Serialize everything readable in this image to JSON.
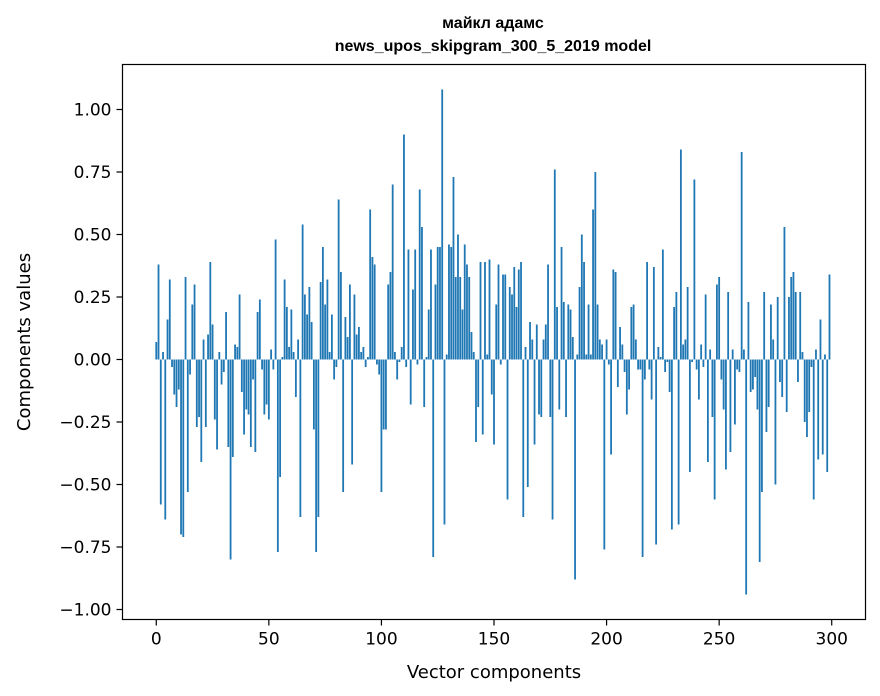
{
  "colors": {
    "bar": "#1f77b4",
    "axis": "#000000",
    "background": "#ffffff"
  },
  "chart_data": {
    "type": "bar",
    "title": "майкл адамс",
    "subtitle": "news_upos_skipgram_300_5_2019 model",
    "xlabel": "Vector components",
    "ylabel": "Components values",
    "xlim": [
      -15,
      315
    ],
    "ylim": [
      -1.04,
      1.18
    ],
    "xticks": [
      0,
      50,
      100,
      150,
      200,
      250,
      300
    ],
    "yticks": [
      -1.0,
      -0.75,
      -0.5,
      -0.25,
      0.0,
      0.25,
      0.5,
      0.75,
      1.0
    ],
    "ytick_labels": [
      "−1.00",
      "−0.75",
      "−0.50",
      "−0.25",
      "0.00",
      "0.25",
      "0.50",
      "0.75",
      "1.00"
    ],
    "grid": false,
    "x": [
      0,
      1,
      2,
      3,
      4,
      5,
      6,
      7,
      8,
      9,
      10,
      11,
      12,
      13,
      14,
      15,
      16,
      17,
      18,
      19,
      20,
      21,
      22,
      23,
      24,
      25,
      26,
      27,
      28,
      29,
      30,
      31,
      32,
      33,
      34,
      35,
      36,
      37,
      38,
      39,
      40,
      41,
      42,
      43,
      44,
      45,
      46,
      47,
      48,
      49,
      50,
      51,
      52,
      53,
      54,
      55,
      56,
      57,
      58,
      59,
      60,
      61,
      62,
      63,
      64,
      65,
      66,
      67,
      68,
      69,
      70,
      71,
      72,
      73,
      74,
      75,
      76,
      77,
      78,
      79,
      80,
      81,
      82,
      83,
      84,
      85,
      86,
      87,
      88,
      89,
      90,
      91,
      92,
      93,
      94,
      95,
      96,
      97,
      98,
      99,
      100,
      101,
      102,
      103,
      104,
      105,
      106,
      107,
      108,
      109,
      110,
      111,
      112,
      113,
      114,
      115,
      116,
      117,
      118,
      119,
      120,
      121,
      122,
      123,
      124,
      125,
      126,
      127,
      128,
      129,
      130,
      131,
      132,
      133,
      134,
      135,
      136,
      137,
      138,
      139,
      140,
      141,
      142,
      143,
      144,
      145,
      146,
      147,
      148,
      149,
      150,
      151,
      152,
      153,
      154,
      155,
      156,
      157,
      158,
      159,
      160,
      161,
      162,
      163,
      164,
      165,
      166,
      167,
      168,
      169,
      170,
      171,
      172,
      173,
      174,
      175,
      176,
      177,
      178,
      179,
      180,
      181,
      182,
      183,
      184,
      185,
      186,
      187,
      188,
      189,
      190,
      191,
      192,
      193,
      194,
      195,
      196,
      197,
      198,
      199,
      200,
      201,
      202,
      203,
      204,
      205,
      206,
      207,
      208,
      209,
      210,
      211,
      212,
      213,
      214,
      215,
      216,
      217,
      218,
      219,
      220,
      221,
      222,
      223,
      224,
      225,
      226,
      227,
      228,
      229,
      230,
      231,
      232,
      233,
      234,
      235,
      236,
      237,
      238,
      239,
      240,
      241,
      242,
      243,
      244,
      245,
      246,
      247,
      248,
      249,
      250,
      251,
      252,
      253,
      254,
      255,
      256,
      257,
      258,
      259,
      260,
      261,
      262,
      263,
      264,
      265,
      266,
      267,
      268,
      269,
      270,
      271,
      272,
      273,
      274,
      275,
      276,
      277,
      278,
      279,
      280,
      281,
      282,
      283,
      284,
      285,
      286,
      287,
      288,
      289,
      290,
      291,
      292,
      293,
      294,
      295,
      296,
      297,
      298,
      299
    ],
    "values": [
      0.07,
      0.38,
      -0.58,
      0.03,
      -0.64,
      0.16,
      0.32,
      -0.03,
      -0.14,
      -0.19,
      -0.12,
      -0.7,
      -0.71,
      0.33,
      -0.53,
      -0.06,
      0.22,
      0.3,
      -0.27,
      -0.23,
      -0.41,
      0.08,
      -0.27,
      0.1,
      0.39,
      0.14,
      -0.24,
      -0.36,
      0.03,
      -0.1,
      -0.05,
      0.19,
      -0.35,
      -0.8,
      -0.39,
      0.06,
      0.05,
      0.26,
      -0.13,
      -0.3,
      -0.2,
      -0.22,
      -0.35,
      -0.08,
      -0.37,
      0.19,
      0.24,
      -0.04,
      -0.22,
      -0.18,
      -0.24,
      0.04,
      -0.04,
      0.48,
      -0.77,
      -0.47,
      0.01,
      0.32,
      0.21,
      0.05,
      0.2,
      0.03,
      -0.15,
      0.08,
      -0.63,
      0.54,
      0.26,
      0.18,
      0.29,
      0.15,
      -0.28,
      -0.77,
      -0.63,
      0.31,
      0.45,
      0.22,
      0.32,
      0.03,
      0.18,
      -0.08,
      -0.03,
      0.64,
      0.35,
      -0.53,
      0.17,
      0.09,
      0.3,
      -0.42,
      0.26,
      0.1,
      0.13,
      0.03,
      0.05,
      -0.03,
      0.01,
      0.6,
      0.41,
      0.38,
      -0.02,
      -0.06,
      -0.53,
      -0.28,
      -0.28,
      0.3,
      0.35,
      0.7,
      0.03,
      -0.08,
      -0.01,
      0.05,
      0.9,
      -0.03,
      0.44,
      -0.18,
      0.28,
      0.44,
      -0.02,
      0.68,
      0.53,
      -0.19,
      0.01,
      0.2,
      0.44,
      -0.79,
      0.3,
      0.45,
      0.45,
      1.08,
      -0.66,
      0.02,
      0.46,
      0.45,
      0.73,
      0.33,
      0.5,
      0.33,
      0.2,
      0.46,
      0.38,
      0.33,
      0.11,
      0.03,
      -0.33,
      -0.19,
      0.39,
      -0.3,
      0.39,
      0.02,
      0.4,
      -0.14,
      -0.34,
      0.22,
      0.38,
      -0.02,
      0.34,
      0.34,
      -0.56,
      0.29,
      0.26,
      0.37,
      0.21,
      0.36,
      0.39,
      -0.63,
      0.05,
      -0.51,
      0.15,
      0.08,
      -0.34,
      0.14,
      -0.22,
      -0.23,
      0.08,
      0.14,
      0.38,
      -0.23,
      -0.64,
      0.76,
      0.21,
      -0.2,
      0.45,
      0.23,
      -0.23,
      0.22,
      0.2,
      0.09,
      -0.88,
      0.02,
      0.29,
      0.5,
      0.39,
      0.02,
      0.22,
      0.02,
      0.6,
      0.75,
      0.22,
      0.08,
      0.06,
      -0.76,
      0.08,
      -0.02,
      -0.38,
      0.36,
      0.35,
      -0.11,
      0.13,
      0.06,
      -0.05,
      -0.22,
      -0.12,
      0.21,
      0.22,
      0.08,
      -0.04,
      -0.04,
      -0.79,
      -0.08,
      0.39,
      -0.04,
      -0.16,
      0.37,
      -0.74,
      0.05,
      0.01,
      0.44,
      -0.05,
      -0.01,
      -0.13,
      -0.68,
      0.21,
      0.27,
      -0.66,
      0.84,
      0.06,
      0.08,
      0.29,
      -0.45,
      -0.01,
      0.72,
      -0.04,
      -0.16,
      0.06,
      -0.03,
      0.26,
      -0.41,
      0.04,
      -0.23,
      -0.56,
      0.3,
      0.33,
      -0.08,
      -0.2,
      -0.44,
      0.27,
      -0.37,
      0.04,
      -0.26,
      -0.04,
      -0.05,
      0.83,
      0.04,
      -0.94,
      0.23,
      -0.13,
      -0.12,
      -0.07,
      -0.2,
      -0.81,
      -0.53,
      0.27,
      -0.29,
      -0.19,
      0.22,
      0.08,
      -0.5,
      0.25,
      -0.09,
      -0.15,
      0.53,
      -0.21,
      0.25,
      0.33,
      0.35,
      0.27,
      -0.09,
      0.27,
      0.03,
      -0.25,
      -0.31,
      -0.21,
      -0.03,
      -0.56,
      0.04,
      -0.4,
      0.16,
      -0.38,
      0.02,
      -0.45,
      0.34
    ]
  }
}
